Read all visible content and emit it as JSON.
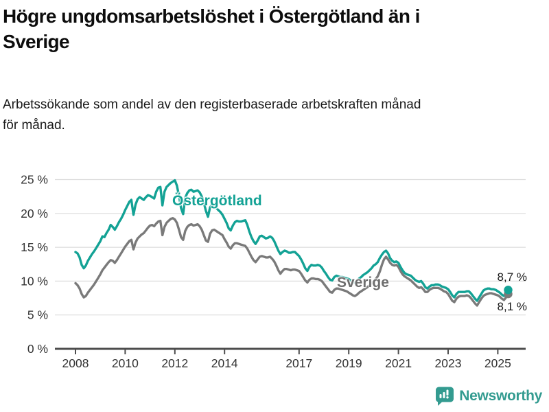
{
  "header": {
    "title_lines": [
      "Högre ungdomsarbetslöshet i Östergötland än i",
      "Sverige"
    ],
    "subtitle_lines": [
      "Arbetssökande som andel av den registerbaserade arbetskraften månad",
      "för månad."
    ]
  },
  "annotations": {
    "series_label_top": "Östergötland",
    "series_label_bottom": "Sverige",
    "end_value_top": "8,7 %",
    "end_value_bottom": "8,1 %"
  },
  "footer": {
    "brand": "Newsworthy",
    "brand_icon": "speech-bubble-bar-chart-icon",
    "brand_color": "#339b90"
  },
  "colors": {
    "ostergotland_line": "#13a295",
    "sverige_line": "#7a7a7a",
    "gridline": "#dcdcdc",
    "axis": "#4d4d4d",
    "tick_text": "#333333",
    "title_text": "#0d0d0d"
  },
  "chart_data": {
    "type": "line",
    "title": "Högre ungdomsarbetslöshet i Östergötland än i Sverige",
    "xlabel": "",
    "ylabel": "",
    "unit": "%",
    "grid": "horizontal",
    "legend": "inline-labels",
    "ylim": [
      0,
      25
    ],
    "xlim": [
      2007.2,
      2026.1
    ],
    "y_ticks": [
      0,
      5,
      10,
      15,
      20,
      25
    ],
    "y_tick_labels": [
      "0 %",
      "5 %",
      "10 %",
      "15 %",
      "20 %",
      "25 %"
    ],
    "x_ticks": [
      2008,
      2010,
      2012,
      2014,
      2017,
      2019,
      2021,
      2023,
      2025
    ],
    "x_tick_labels": [
      "2008",
      "2010",
      "2012",
      "2014",
      "2017",
      "2019",
      "2021",
      "2023",
      "2025"
    ],
    "x_start_year": 2008.0,
    "x_step_years": 0.0833333,
    "series": [
      {
        "name": "Sverige",
        "color": "#7a7a7a",
        "end_label": "8,1 %",
        "values": [
          9.7,
          9.4,
          8.9,
          8.1,
          7.6,
          7.8,
          8.3,
          8.7,
          9.1,
          9.5,
          10.0,
          10.5,
          11.0,
          11.6,
          12.0,
          12.4,
          12.8,
          13.1,
          13.0,
          12.7,
          13.1,
          13.6,
          14.1,
          14.6,
          15.1,
          15.5,
          15.9,
          16.1,
          14.7,
          15.7,
          16.3,
          16.6,
          16.9,
          17.1,
          17.5,
          17.9,
          18.2,
          18.3,
          18.1,
          18.5,
          18.8,
          18.9,
          16.8,
          18.0,
          18.6,
          18.9,
          19.2,
          19.3,
          19.1,
          18.6,
          17.6,
          16.5,
          16.1,
          17.4,
          18.0,
          18.3,
          18.4,
          18.2,
          18.3,
          18.4,
          18.1,
          17.6,
          16.8,
          16.0,
          15.8,
          17.0,
          17.5,
          17.6,
          17.4,
          17.2,
          17.0,
          16.8,
          16.2,
          15.7,
          15.1,
          14.8,
          15.3,
          15.6,
          15.6,
          15.5,
          15.4,
          15.3,
          15.2,
          14.8,
          14.2,
          13.6,
          13.1,
          12.8,
          13.2,
          13.6,
          13.7,
          13.6,
          13.5,
          13.5,
          13.6,
          13.3,
          12.9,
          12.3,
          11.6,
          11.1,
          11.5,
          11.8,
          11.8,
          11.7,
          11.6,
          11.7,
          11.7,
          11.6,
          11.5,
          11.1,
          10.6,
          10.1,
          9.8,
          10.2,
          10.4,
          10.4,
          10.3,
          10.3,
          10.2,
          10.0,
          9.6,
          9.2,
          8.8,
          8.4,
          8.3,
          8.7,
          8.9,
          8.9,
          8.8,
          8.7,
          8.6,
          8.5,
          8.3,
          8.1,
          7.9,
          7.8,
          8.0,
          8.3,
          8.5,
          8.7,
          8.9,
          9.1,
          9.4,
          9.7,
          10.0,
          10.3,
          10.7,
          11.4,
          12.4,
          13.2,
          13.6,
          13.2,
          12.7,
          12.4,
          12.3,
          12.4,
          12.1,
          11.5,
          11.0,
          10.7,
          10.5,
          10.3,
          10.1,
          9.8,
          9.5,
          9.2,
          9.0,
          9.1,
          8.8,
          8.4,
          8.4,
          8.7,
          8.9,
          9.0,
          9.0,
          9.0,
          8.9,
          8.7,
          8.5,
          8.4,
          8.1,
          7.6,
          7.1,
          6.9,
          7.4,
          7.7,
          7.8,
          7.8,
          7.8,
          7.9,
          7.8,
          7.5,
          7.1,
          6.7,
          6.4,
          6.9,
          7.4,
          7.8,
          8.0,
          8.1,
          8.2,
          8.2,
          8.1,
          8.0,
          7.9,
          7.7,
          7.4,
          7.2,
          7.6,
          8.1
        ]
      },
      {
        "name": "Östergötland",
        "color": "#13a295",
        "end_label": "8,7 %",
        "values": [
          14.3,
          14.1,
          13.5,
          12.4,
          11.9,
          12.3,
          13.0,
          13.5,
          14.0,
          14.4,
          14.9,
          15.4,
          15.9,
          16.6,
          16.5,
          17.1,
          17.6,
          18.3,
          18.0,
          17.6,
          18.1,
          18.7,
          19.2,
          19.8,
          20.5,
          21.1,
          21.7,
          22.0,
          19.8,
          21.3,
          22.1,
          22.4,
          22.2,
          22.0,
          22.4,
          22.7,
          22.6,
          22.4,
          22.2,
          23.2,
          23.8,
          23.9,
          21.2,
          23.2,
          23.9,
          24.2,
          24.5,
          24.7,
          24.9,
          24.1,
          22.6,
          20.8,
          19.9,
          22.3,
          23.0,
          23.4,
          23.5,
          23.2,
          23.3,
          23.4,
          23.1,
          22.5,
          21.6,
          20.4,
          19.5,
          20.9,
          21.3,
          21.1,
          20.8,
          20.5,
          20.2,
          19.8,
          19.2,
          18.6,
          17.8,
          17.5,
          18.2,
          18.7,
          18.9,
          18.8,
          18.8,
          18.9,
          19.0,
          18.3,
          17.3,
          16.5,
          15.9,
          15.5,
          16.0,
          16.6,
          16.7,
          16.5,
          16.3,
          16.4,
          16.6,
          16.4,
          15.9,
          15.2,
          14.5,
          14.0,
          14.3,
          14.5,
          14.4,
          14.2,
          14.2,
          14.3,
          14.3,
          14.0,
          13.7,
          13.2,
          12.6,
          11.9,
          11.5,
          12.1,
          12.4,
          12.3,
          12.3,
          12.4,
          12.3,
          12.0,
          11.5,
          11.1,
          10.6,
          10.2,
          10.1,
          10.6,
          10.8,
          10.7,
          10.6,
          10.6,
          10.5,
          10.4,
          10.3,
          10.1,
          9.9,
          9.8,
          10.0,
          10.4,
          10.6,
          10.9,
          11.1,
          11.3,
          11.6,
          11.9,
          12.3,
          12.5,
          12.8,
          13.4,
          13.9,
          14.3,
          14.5,
          14.1,
          13.4,
          13.0,
          12.8,
          12.9,
          12.7,
          12.1,
          11.6,
          11.2,
          11.0,
          10.9,
          10.8,
          10.5,
          10.2,
          10.0,
          9.9,
          10.0,
          9.6,
          9.1,
          8.9,
          9.2,
          9.4,
          9.4,
          9.5,
          9.5,
          9.4,
          9.2,
          9.1,
          9.0,
          8.8,
          8.4,
          7.9,
          7.6,
          8.1,
          8.4,
          8.4,
          8.4,
          8.4,
          8.5,
          8.5,
          8.2,
          7.8,
          7.4,
          7.1,
          7.6,
          8.1,
          8.6,
          8.8,
          8.9,
          8.9,
          8.8,
          8.8,
          8.7,
          8.5,
          8.3,
          8.0,
          7.8,
          8.2,
          8.7
        ]
      }
    ]
  }
}
